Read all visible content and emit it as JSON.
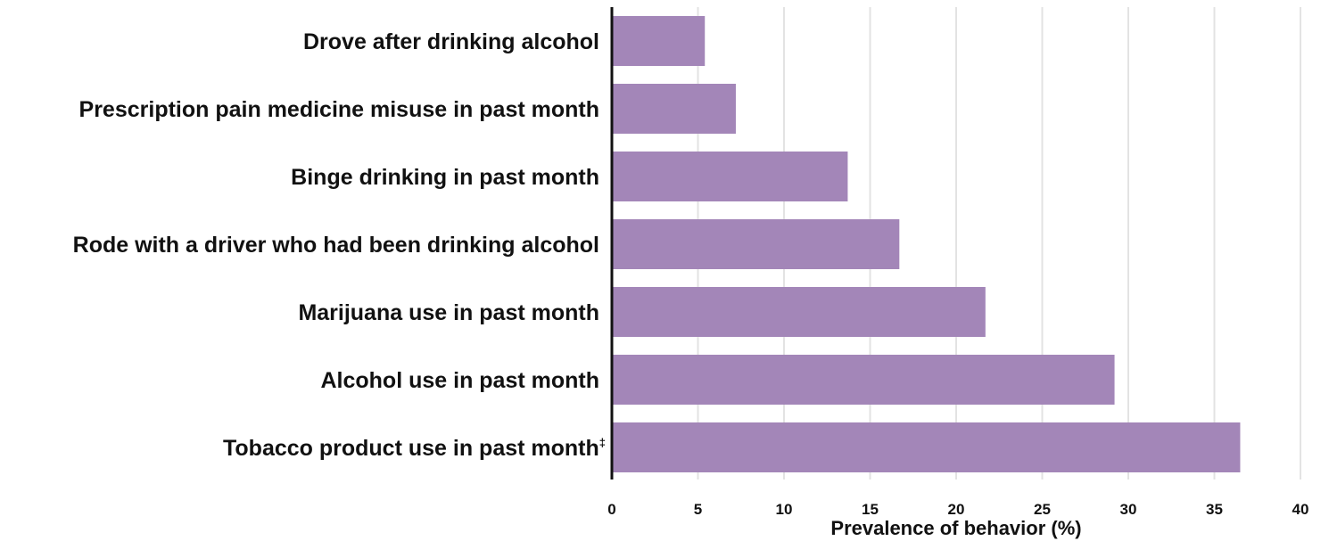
{
  "chart_data": {
    "type": "bar",
    "orientation": "horizontal",
    "categories": [
      "Drove after drinking alcohol",
      "Prescription pain medicine misuse in past month",
      "Binge drinking in past month",
      "Rode with a driver who had been drinking alcohol",
      "Marijuana use in past month",
      "Alcohol use in past month",
      "Tobacco product use in past month"
    ],
    "footnote_marks": [
      "",
      "",
      "",
      "",
      "",
      "",
      "‡"
    ],
    "values": [
      5.4,
      7.2,
      13.7,
      16.7,
      21.7,
      29.2,
      36.5
    ],
    "xlabel": "Prevalence of behavior (%)",
    "ylabel": "",
    "xlim": [
      0,
      40
    ],
    "xticks": [
      0,
      5,
      10,
      15,
      20,
      25,
      30,
      35,
      40
    ],
    "grid": "vertical",
    "bar_color": "#a386b8",
    "grid_color": "#e3e3e3",
    "axis_color": "#111111"
  }
}
